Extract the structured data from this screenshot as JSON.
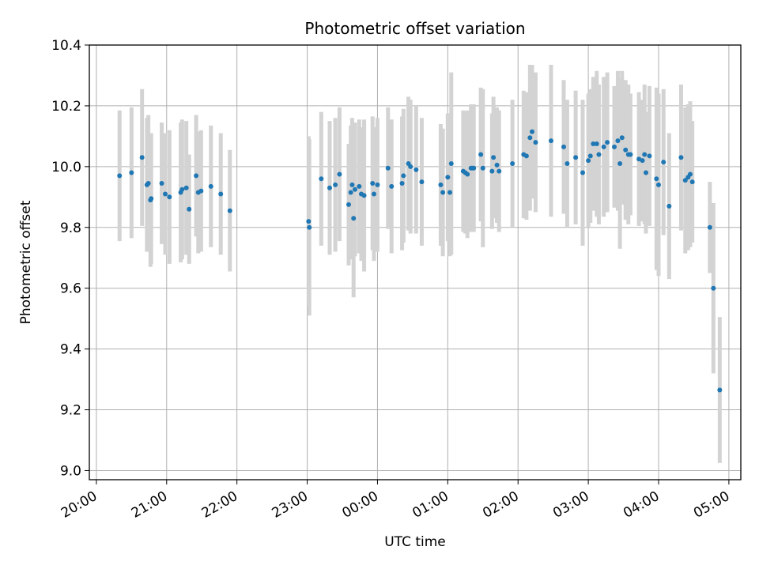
{
  "chart_data": {
    "type": "scatter",
    "title": "Photometric offset variation",
    "xlabel": "UTC time",
    "ylabel": "Photometric offset",
    "xlim": [
      -0.1,
      9.17
    ],
    "ylim": [
      8.97,
      10.4
    ],
    "grid": true,
    "xticks": [
      {
        "value": 0,
        "label": "20:00"
      },
      {
        "value": 1,
        "label": "21:00"
      },
      {
        "value": 2,
        "label": "22:00"
      },
      {
        "value": 3,
        "label": "23:00"
      },
      {
        "value": 4,
        "label": "00:00"
      },
      {
        "value": 5,
        "label": "01:00"
      },
      {
        "value": 6,
        "label": "02:00"
      },
      {
        "value": 7,
        "label": "03:00"
      },
      {
        "value": 8,
        "label": "04:00"
      },
      {
        "value": 9,
        "label": "05:00"
      }
    ],
    "yticks": [
      {
        "value": 9.0,
        "label": "9.0"
      },
      {
        "value": 9.2,
        "label": "9.2"
      },
      {
        "value": 9.4,
        "label": "9.4"
      },
      {
        "value": 9.6,
        "label": "9.6"
      },
      {
        "value": 9.8,
        "label": "9.8"
      },
      {
        "value": 10.0,
        "label": "10.0"
      },
      {
        "value": 10.2,
        "label": "10.2"
      },
      {
        "value": 10.4,
        "label": "10.4"
      }
    ],
    "point_color": "#1f77b4",
    "errorbar_color": "#d3d3d3",
    "series": [
      {
        "name": "offset",
        "x_hours": [
          0.33,
          0.5,
          0.65,
          0.72,
          0.74,
          0.77,
          0.78,
          0.93,
          0.98,
          1.04,
          1.2,
          1.22,
          1.28,
          1.32,
          1.42,
          1.45,
          1.49,
          1.63,
          1.77,
          1.9,
          3.02,
          3.03,
          3.2,
          3.32,
          3.4,
          3.46,
          3.59,
          3.62,
          3.64,
          3.66,
          3.68,
          3.74,
          3.77,
          3.81,
          3.93,
          3.95,
          4.0,
          4.15,
          4.2,
          4.35,
          4.37,
          4.44,
          4.47,
          4.55,
          4.63,
          4.9,
          4.93,
          5.0,
          5.03,
          5.05,
          5.22,
          5.25,
          5.28,
          5.33,
          5.35,
          5.37,
          5.47,
          5.5,
          5.63,
          5.65,
          5.7,
          5.73,
          5.92,
          6.08,
          6.12,
          6.17,
          6.2,
          6.25,
          6.47,
          6.65,
          6.7,
          6.82,
          6.92,
          7.0,
          7.03,
          7.07,
          7.12,
          7.15,
          7.22,
          7.27,
          7.37,
          7.42,
          7.45,
          7.48,
          7.53,
          7.57,
          7.6,
          7.72,
          7.77,
          7.8,
          7.82,
          7.87,
          7.97,
          8.0,
          8.07,
          8.15,
          8.32,
          8.38,
          8.42,
          8.45,
          8.48,
          8.73,
          8.78,
          8.87
        ],
        "y": [
          9.97,
          9.98,
          10.03,
          9.94,
          9.945,
          9.89,
          9.895,
          9.945,
          9.91,
          9.9,
          9.915,
          9.925,
          9.93,
          9.86,
          9.97,
          9.915,
          9.92,
          9.935,
          9.91,
          9.855,
          9.82,
          9.8,
          9.96,
          9.93,
          9.94,
          9.975,
          9.875,
          9.915,
          9.94,
          9.83,
          9.925,
          9.935,
          9.91,
          9.905,
          9.945,
          9.91,
          9.94,
          9.995,
          9.935,
          9.945,
          9.97,
          10.01,
          10.0,
          9.99,
          9.95,
          9.94,
          9.915,
          9.965,
          9.915,
          10.01,
          9.985,
          9.98,
          9.975,
          9.995,
          9.995,
          9.995,
          10.04,
          9.995,
          9.985,
          10.03,
          10.005,
          9.985,
          10.01,
          10.04,
          10.035,
          10.095,
          10.115,
          10.08,
          10.085,
          10.065,
          10.01,
          10.03,
          9.98,
          10.02,
          10.035,
          10.075,
          10.075,
          10.04,
          10.065,
          10.08,
          10.065,
          10.085,
          10.01,
          10.095,
          10.055,
          10.04,
          10.04,
          10.025,
          10.02,
          10.04,
          9.98,
          10.035,
          9.96,
          9.94,
          10.015,
          9.87,
          10.03,
          9.955,
          9.965,
          9.975,
          9.95,
          9.8,
          9.6,
          9.265
        ],
        "err": [
          0.215,
          0.215,
          0.225,
          0.22,
          0.225,
          0.22,
          0.215,
          0.2,
          0.2,
          0.22,
          0.23,
          0.23,
          0.22,
          0.18,
          0.2,
          0.2,
          0.2,
          0.2,
          0.2,
          0.2,
          0.28,
          0.29,
          0.22,
          0.22,
          0.22,
          0.22,
          0.2,
          0.22,
          0.22,
          0.26,
          0.22,
          0.22,
          0.22,
          0.25,
          0.22,
          0.22,
          0.22,
          0.2,
          0.22,
          0.22,
          0.22,
          0.22,
          0.22,
          0.21,
          0.21,
          0.2,
          0.21,
          0.21,
          0.21,
          0.3,
          0.2,
          0.2,
          0.21,
          0.21,
          0.21,
          0.21,
          0.22,
          0.26,
          0.19,
          0.2,
          0.19,
          0.2,
          0.21,
          0.21,
          0.21,
          0.24,
          0.22,
          0.23,
          0.25,
          0.22,
          0.21,
          0.22,
          0.24,
          0.22,
          0.22,
          0.22,
          0.24,
          0.23,
          0.23,
          0.23,
          0.2,
          0.23,
          0.28,
          0.22,
          0.23,
          0.23,
          0.2,
          0.22,
          0.2,
          0.23,
          0.2,
          0.23,
          0.3,
          0.3,
          0.24,
          0.24,
          0.24,
          0.24,
          0.24,
          0.24,
          0.2,
          0.15,
          0.28,
          0.24
        ]
      }
    ]
  }
}
